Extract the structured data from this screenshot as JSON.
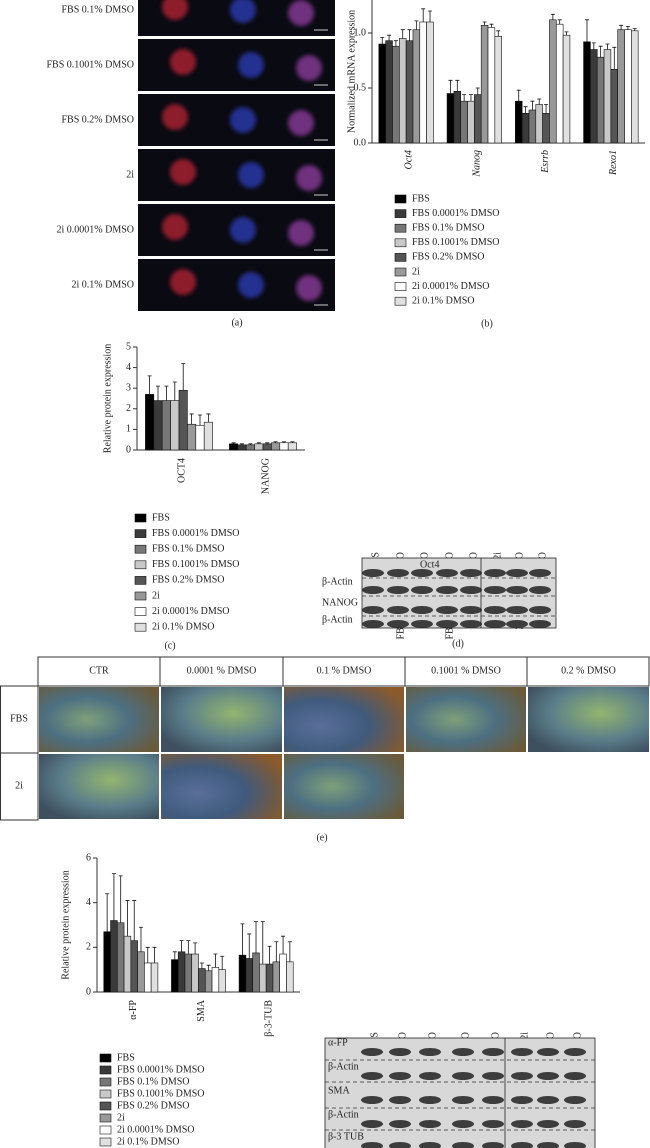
{
  "panel_a": {
    "row_labels": [
      "FBS 0.1% DMSO",
      "FBS 0.1001% DMSO",
      "FBS 0.2% DMSO",
      "2i",
      "2i 0.0001% DMSO",
      "2i 0.1% DMSO"
    ],
    "caption": "(a)"
  },
  "chart_data": [
    {
      "type": "bar",
      "y_label": "Normalized mRNA expression",
      "caption": "(b)",
      "categories": [
        "Oct4",
        "Nanog",
        "Esrrb",
        "Rexo1"
      ],
      "ylim": [
        0,
        1.3
      ],
      "yticks": [
        {
          "value": 0,
          "label": "0.0"
        },
        0.5,
        {
          "value": 1,
          "label": "1.0"
        }
      ],
      "series": [
        {
          "name": "FBS",
          "color": "#000000",
          "values": [
            0.9,
            0.45,
            0.38,
            0.92
          ],
          "errors": [
            0.06,
            0.12,
            0.1,
            0.2
          ]
        },
        {
          "name": "FBS 0.0001% DMSO",
          "color": "#3a3a3a",
          "values": [
            0.93,
            0.47,
            0.27,
            0.85
          ],
          "errors": [
            0.05,
            0.1,
            0.06,
            0.06
          ]
        },
        {
          "name": "FBS 0.1% DMSO",
          "color": "#777777",
          "values": [
            0.88,
            0.38,
            0.3,
            0.78
          ],
          "errors": [
            0.05,
            0.06,
            0.08,
            0.1
          ]
        },
        {
          "name": "FBS 0.1001% DMSO",
          "color": "#c8c8c8",
          "values": [
            0.95,
            0.38,
            0.35,
            0.85
          ],
          "errors": [
            0.08,
            0.06,
            0.05,
            0.05
          ]
        },
        {
          "name": "FBS 0.2% DMSO",
          "color": "#555555",
          "values": [
            0.93,
            0.44,
            0.27,
            0.67
          ],
          "errors": [
            0.1,
            0.06,
            0.08,
            0.2
          ]
        },
        {
          "name": "2i",
          "color": "#999999",
          "values": [
            1.03,
            1.07,
            1.12,
            1.03
          ],
          "errors": [
            0.08,
            0.03,
            0.05,
            0.04
          ]
        },
        {
          "name": "2i 0.0001% DMSO",
          "color": "#ffffff",
          "values": [
            1.1,
            1.05,
            1.08,
            1.03
          ],
          "errors": [
            0.12,
            0.03,
            0.04,
            0.03
          ]
        },
        {
          "name": "2i 0.1% DMSO",
          "color": "#e0e0e0",
          "values": [
            1.1,
            0.97,
            0.98,
            1.02
          ],
          "errors": [
            0.1,
            0.05,
            0.03,
            0.02
          ]
        }
      ]
    },
    {
      "type": "bar",
      "y_label": "Relative protein expression",
      "caption": "(c)",
      "categories": [
        "OCT4",
        "NANOG"
      ],
      "ylim": [
        0,
        5
      ],
      "yticks": [
        0,
        1,
        2,
        3,
        4,
        5
      ],
      "series": [
        {
          "name": "FBS",
          "color": "#000000",
          "values": [
            2.7,
            0.3
          ],
          "errors": [
            0.9,
            0.05
          ]
        },
        {
          "name": "FBS 0.0001% DMSO",
          "color": "#3a3a3a",
          "values": [
            2.4,
            0.25
          ],
          "errors": [
            0.7,
            0.05
          ]
        },
        {
          "name": "FBS 0.1% DMSO",
          "color": "#777777",
          "values": [
            2.4,
            0.25
          ],
          "errors": [
            0.7,
            0.05
          ]
        },
        {
          "name": "FBS 0.1001% DMSO",
          "color": "#c8c8c8",
          "values": [
            2.4,
            0.3
          ],
          "errors": [
            0.9,
            0.05
          ]
        },
        {
          "name": "FBS 0.2% DMSO",
          "color": "#555555",
          "values": [
            2.9,
            0.3
          ],
          "errors": [
            1.3,
            0.05
          ]
        },
        {
          "name": "2i",
          "color": "#999999",
          "values": [
            1.25,
            0.35
          ],
          "errors": [
            0.5,
            0.05
          ]
        },
        {
          "name": "2i 0.0001% DMSO",
          "color": "#ffffff",
          "values": [
            1.2,
            0.35
          ],
          "errors": [
            0.5,
            0.05
          ]
        },
        {
          "name": "2i 0.1% DMSO",
          "color": "#e0e0e0",
          "values": [
            1.35,
            0.35
          ],
          "errors": [
            0.4,
            0.05
          ]
        }
      ]
    },
    {
      "type": "bar",
      "y_label": "Relative protein expression",
      "categories": [
        "α-FP",
        "SMA",
        "β-3-TUB"
      ],
      "ylim": [
        0,
        6
      ],
      "yticks": [
        0,
        2,
        4,
        6
      ],
      "series": [
        {
          "name": "FBS",
          "color": "#000000",
          "values": [
            2.7,
            1.45,
            1.65
          ],
          "errors": [
            1.7,
            0.35,
            1.4
          ]
        },
        {
          "name": "FBS 0.0001% DMSO",
          "color": "#3a3a3a",
          "values": [
            3.2,
            1.8,
            1.5
          ],
          "errors": [
            2.1,
            0.5,
            1.1
          ]
        },
        {
          "name": "FBS 0.1% DMSO",
          "color": "#777777",
          "values": [
            3.1,
            1.7,
            1.75
          ],
          "errors": [
            2.1,
            0.6,
            1.4
          ]
        },
        {
          "name": "FBS 0.1001% DMSO",
          "color": "#c8c8c8",
          "values": [
            2.5,
            1.7,
            1.25
          ],
          "errors": [
            1.6,
            0.5,
            1.9
          ]
        },
        {
          "name": "FBS 0.2% DMSO",
          "color": "#555555",
          "values": [
            2.3,
            1.05,
            1.25
          ],
          "errors": [
            1.8,
            0.25,
            0.8
          ]
        },
        {
          "name": "2i",
          "color": "#999999",
          "values": [
            1.8,
            0.95,
            1.35
          ],
          "errors": [
            1.1,
            0.25,
            0.9
          ]
        },
        {
          "name": "2i 0.0001% DMSO",
          "color": "#ffffff",
          "values": [
            1.3,
            1.1,
            1.7
          ],
          "errors": [
            0.7,
            0.6,
            0.8
          ]
        },
        {
          "name": "2i 0.1% DMSO",
          "color": "#e0e0e0",
          "values": [
            1.3,
            1.0,
            1.35
          ],
          "errors": [
            0.7,
            0.6,
            0.9
          ]
        }
      ]
    }
  ],
  "panel_d": {
    "column_labels": [
      "FBS",
      "FBS 0.0001% DMSO",
      "FBS 0.1% DMSO",
      "FBS 0.1001% DMSO",
      "FBS 0.2% DMSO",
      "2i",
      "2i 0.0001% DMSO",
      "2i 0.1% DMSO"
    ],
    "row_labels": [
      "Oct4",
      "β-Actin",
      "NANOG",
      "β-Actin"
    ],
    "caption": "(d)"
  },
  "panel_e": {
    "column_headers": [
      "CTR",
      "0.0001 % DMSO",
      "0.1 % DMSO",
      "0.1001 % DMSO",
      "0.2 % DMSO"
    ],
    "row_headers": [
      "FBS",
      "2i"
    ],
    "caption": "(e)"
  },
  "panel_g": {
    "column_labels": [
      "FBS",
      "FBS 0.0001 % DMSO",
      "FBS 0.1 % DMSO",
      "FBS 0.1001% DMSO",
      "FBS 0.2% DMSO",
      "2i",
      "2i 0.0001 % DMSO",
      "2i 0.1 % DMSO"
    ],
    "row_labels": [
      "α-FP",
      "β-Actin",
      "SMA",
      "β-Actin",
      "β-3 TUB"
    ]
  }
}
